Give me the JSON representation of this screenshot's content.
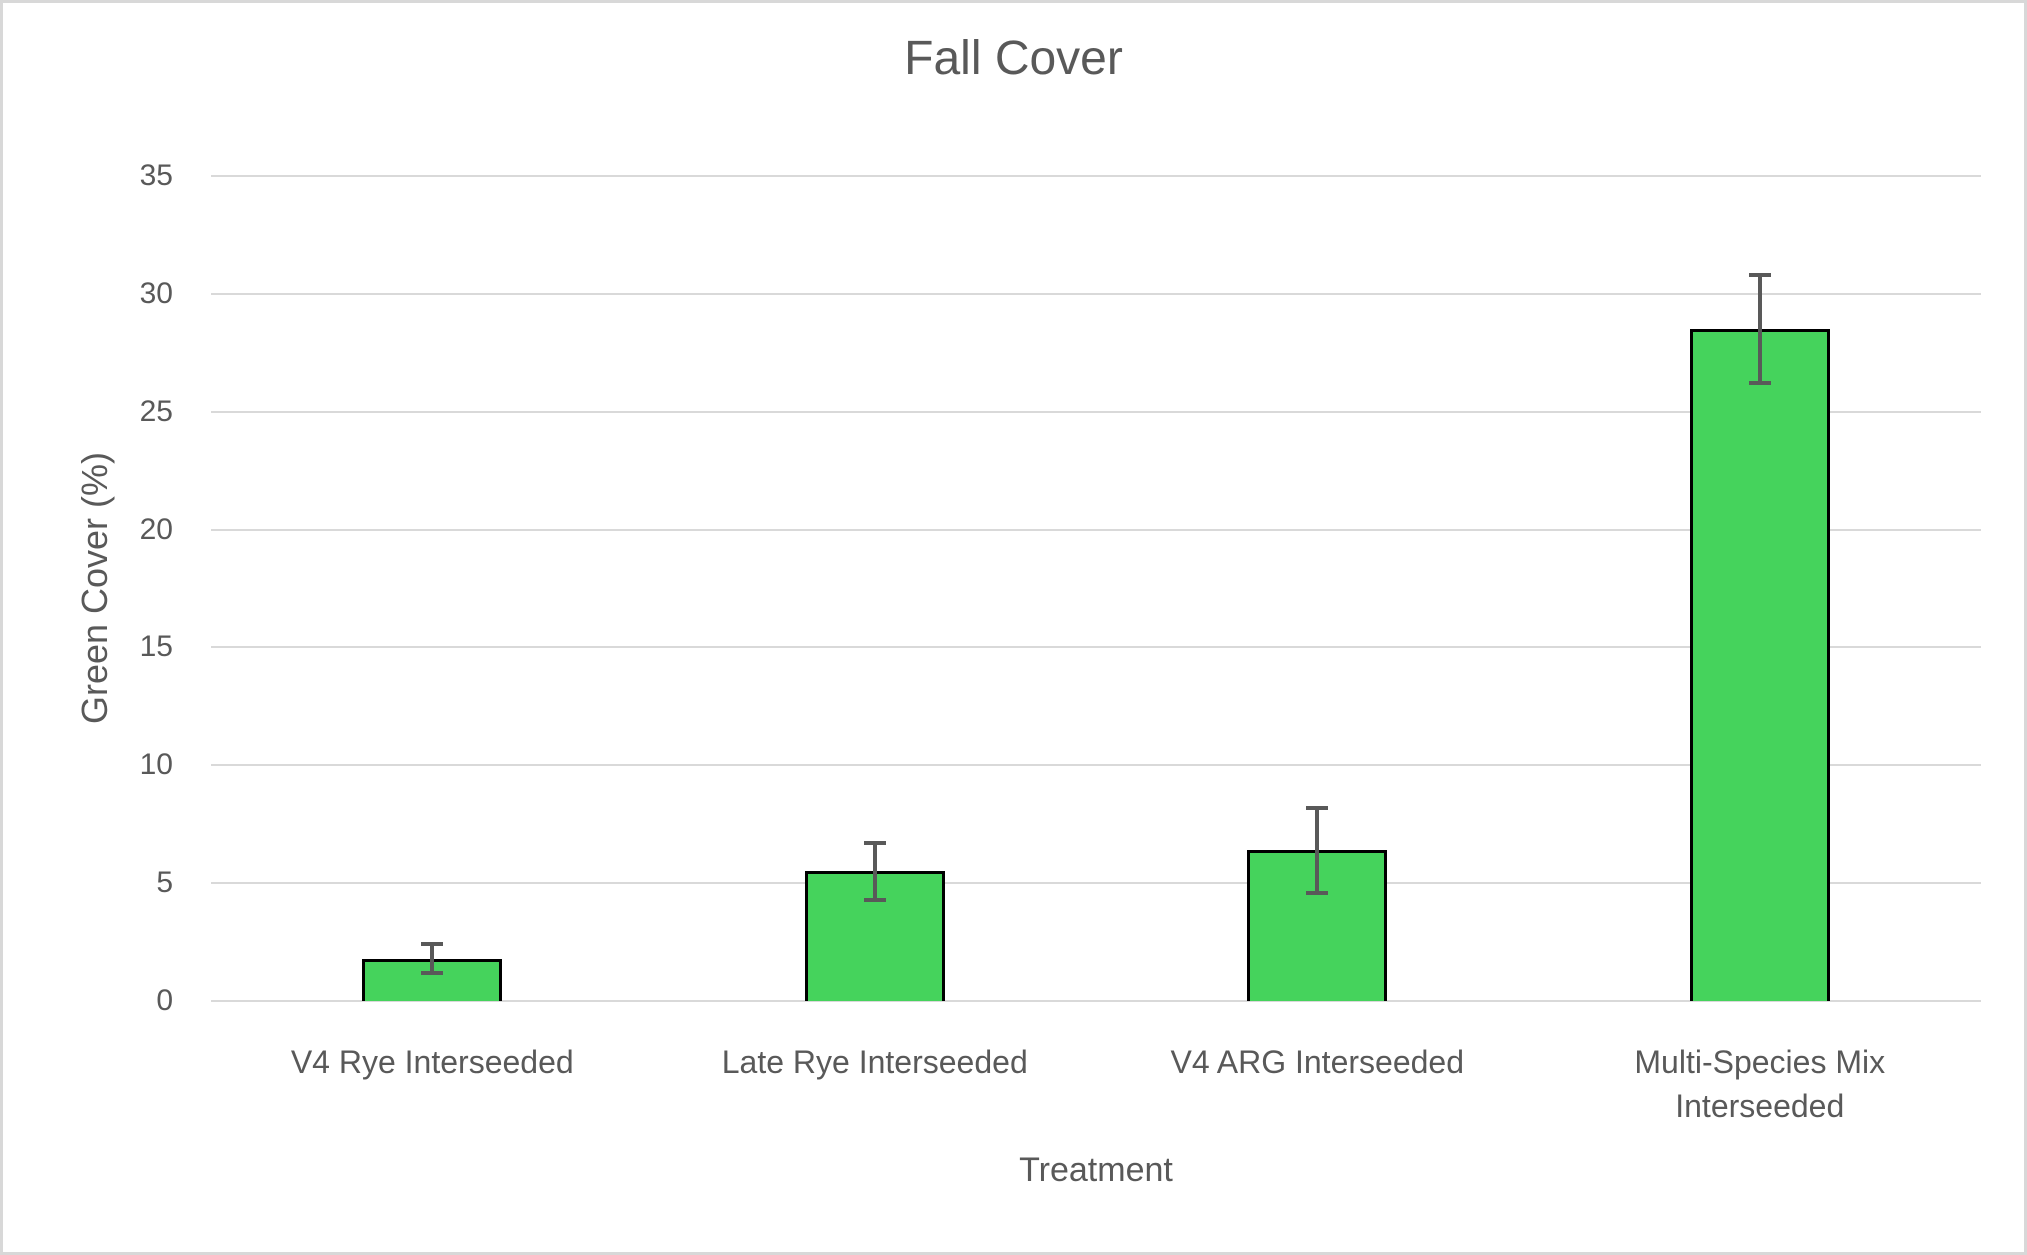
{
  "chart_data": {
    "type": "bar",
    "title": "Fall Cover",
    "xlabel": "Treatment",
    "ylabel": "Green Cover (%)",
    "categories": [
      "V4 Rye Interseeded",
      "Late Rye Interseeded",
      "V4 ARG Interseeded",
      "Multi-Species Mix Interseeded"
    ],
    "values": [
      1.8,
      5.5,
      6.4,
      28.5
    ],
    "error_bars": [
      0.6,
      1.2,
      1.8,
      2.3
    ],
    "ylim": [
      0,
      35
    ],
    "ytick_interval": 5,
    "yticks": [
      0,
      5,
      10,
      15,
      20,
      25,
      30,
      35
    ],
    "grid": true,
    "legend": "none",
    "colors": {
      "bar_fill": "#45D35C",
      "bar_border": "#000000",
      "gridline": "#D9D9D9",
      "axis_text": "#595959",
      "title_text": "#595959",
      "error_bar": "#595959",
      "frame_border": "#D8D8D8",
      "background": "#FFFFFF"
    }
  }
}
